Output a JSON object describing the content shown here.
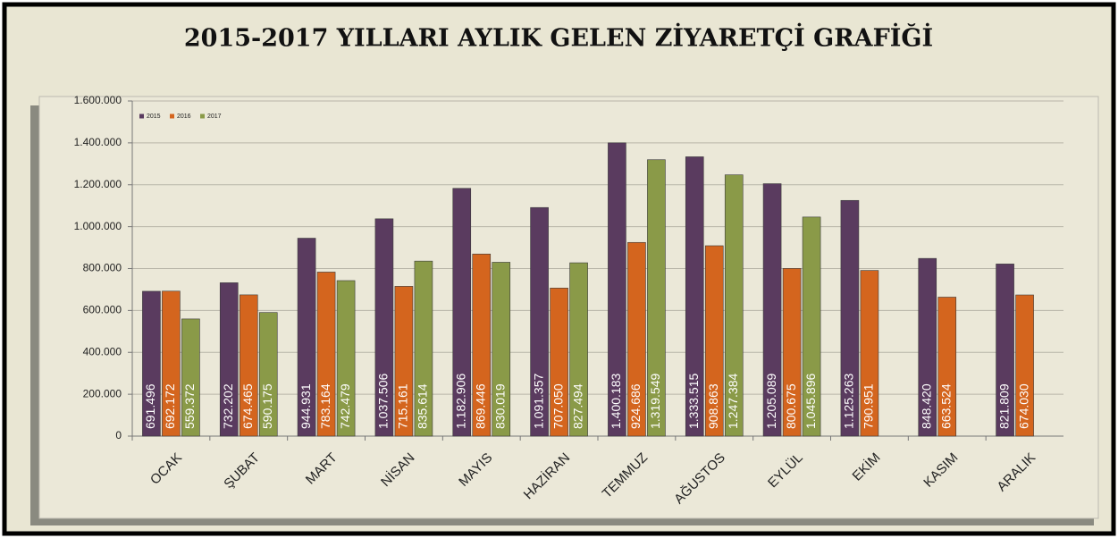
{
  "chart_data": {
    "type": "bar",
    "title": "2015-2017 YILLARI AYLIK GELEN ZİYARETÇİ GRAFİĞİ",
    "categories": [
      "OCAK",
      "ŞUBAT",
      "MART",
      "NİSAN",
      "MAYIS",
      "HAZİRAN",
      "TEMMUZ",
      "AĞUSTOS",
      "EYLÜL",
      "EKİM",
      "KASIM",
      "ARALIK"
    ],
    "series": [
      {
        "name": "2015",
        "color": "#5a3b5f",
        "values": [
          691496,
          732202,
          944931,
          1037506,
          1182906,
          1091357,
          1400183,
          1333515,
          1205089,
          1125263,
          848420,
          821809
        ],
        "value_labels": [
          "691.496",
          "732.202",
          "944.931",
          "1.037.506",
          "1.182.906",
          "1.091.357",
          "1.400.183",
          "1.333.515",
          "1.205.089",
          "1.125.263",
          "848.420",
          "821.809"
        ]
      },
      {
        "name": "2016",
        "color": "#d4651e",
        "values": [
          692172,
          674465,
          783164,
          715161,
          869446,
          707050,
          924686,
          908863,
          800675,
          790951,
          663524,
          674030
        ],
        "value_labels": [
          "692.172",
          "674.465",
          "783.164",
          "715.161",
          "869.446",
          "707.050",
          "924.686",
          "908.863",
          "800.675",
          "790.951",
          "663.524",
          "674.030"
        ]
      },
      {
        "name": "2017",
        "color": "#8a9a48",
        "values": [
          559372,
          590175,
          742479,
          835614,
          830019,
          827494,
          1319549,
          1247384,
          1045896,
          null,
          null,
          null
        ],
        "value_labels": [
          "559.372",
          "590.175",
          "742.479",
          "835.614",
          "830.019",
          "827.494",
          "1.319.549",
          "1.247.384",
          "1.045.896",
          null,
          null,
          null
        ]
      }
    ],
    "ylim": [
      0,
      1600000
    ],
    "yticks": [
      0,
      {
        "value": 200000,
        "label": "200.000"
      },
      {
        "value": 400000,
        "label": "400.000"
      },
      {
        "value": 600000,
        "label": "600.000"
      },
      {
        "value": 800000,
        "label": "800.000"
      },
      {
        "value": 1000000,
        "label": "1.000.000"
      },
      {
        "value": 1200000,
        "label": "1.200.000"
      },
      {
        "value": 1400000,
        "label": "1.400.000"
      },
      {
        "value": 1600000,
        "label": "1.600.000"
      }
    ],
    "grid": true,
    "legend": "top-left"
  }
}
